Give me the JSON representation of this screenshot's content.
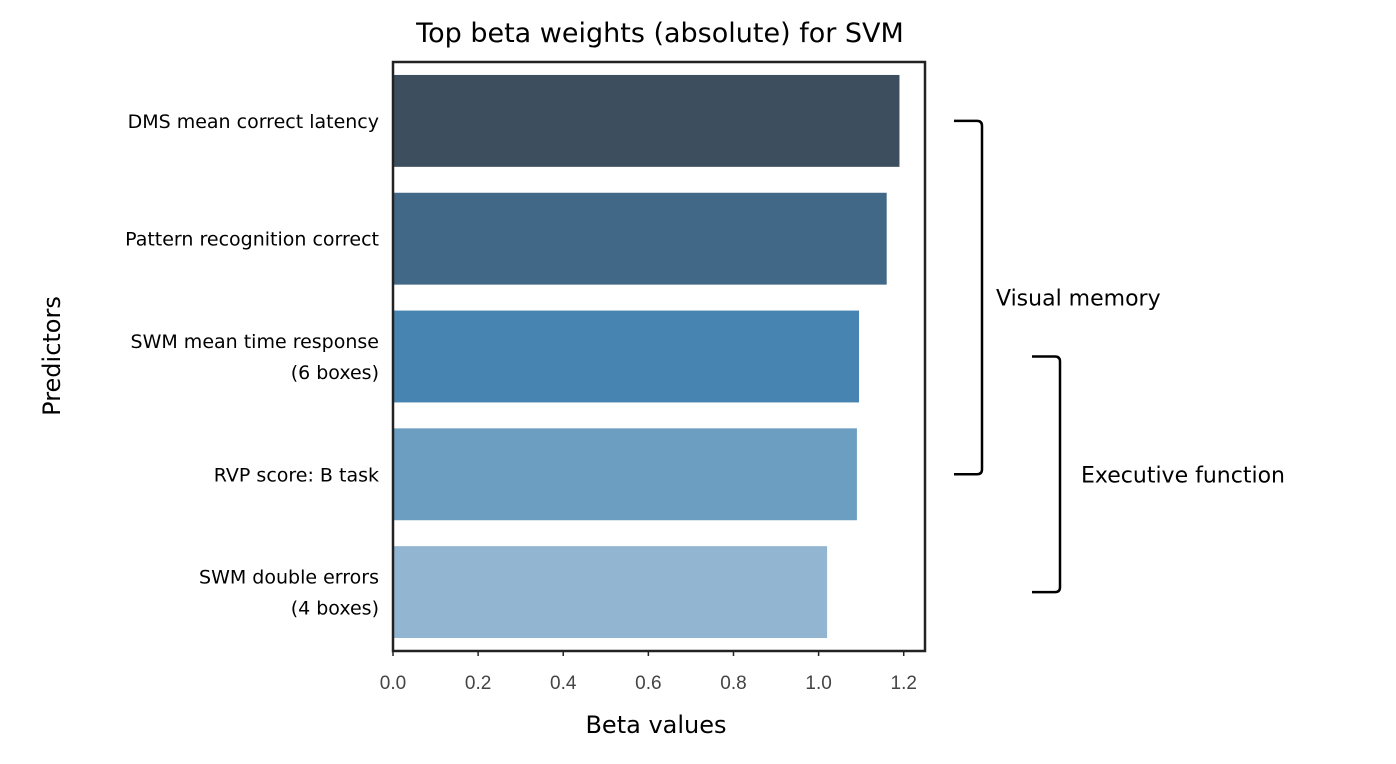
{
  "chart_data": {
    "type": "bar",
    "orientation": "horizontal",
    "title": "Top beta weights (absolute) for SVM",
    "xlabel": "Beta values",
    "ylabel": "Predictors",
    "categories": [
      [
        "DMS mean correct latency"
      ],
      [
        "Pattern recognition correct"
      ],
      [
        "SWM mean time response",
        "(6 boxes)"
      ],
      [
        "RVP score: B task"
      ],
      [
        "SWM double errors",
        "(4 boxes)"
      ]
    ],
    "values": [
      1.19,
      1.16,
      1.095,
      1.09,
      1.02
    ],
    "colors": [
      "#3d4f5e",
      "#426887",
      "#4884b2",
      "#6b9ec1",
      "#92b6d2"
    ],
    "xlim": [
      0,
      1.25
    ],
    "xticks": [
      "0.0",
      "0.2",
      "0.4",
      "0.6",
      "0.8",
      "1.0",
      "1.2"
    ],
    "grid": false,
    "annotations": [
      {
        "label": "Visual memory",
        "from_category": 0,
        "to_category": 3
      },
      {
        "label": "Executive function",
        "from_category": 2,
        "to_category": 4
      }
    ]
  }
}
